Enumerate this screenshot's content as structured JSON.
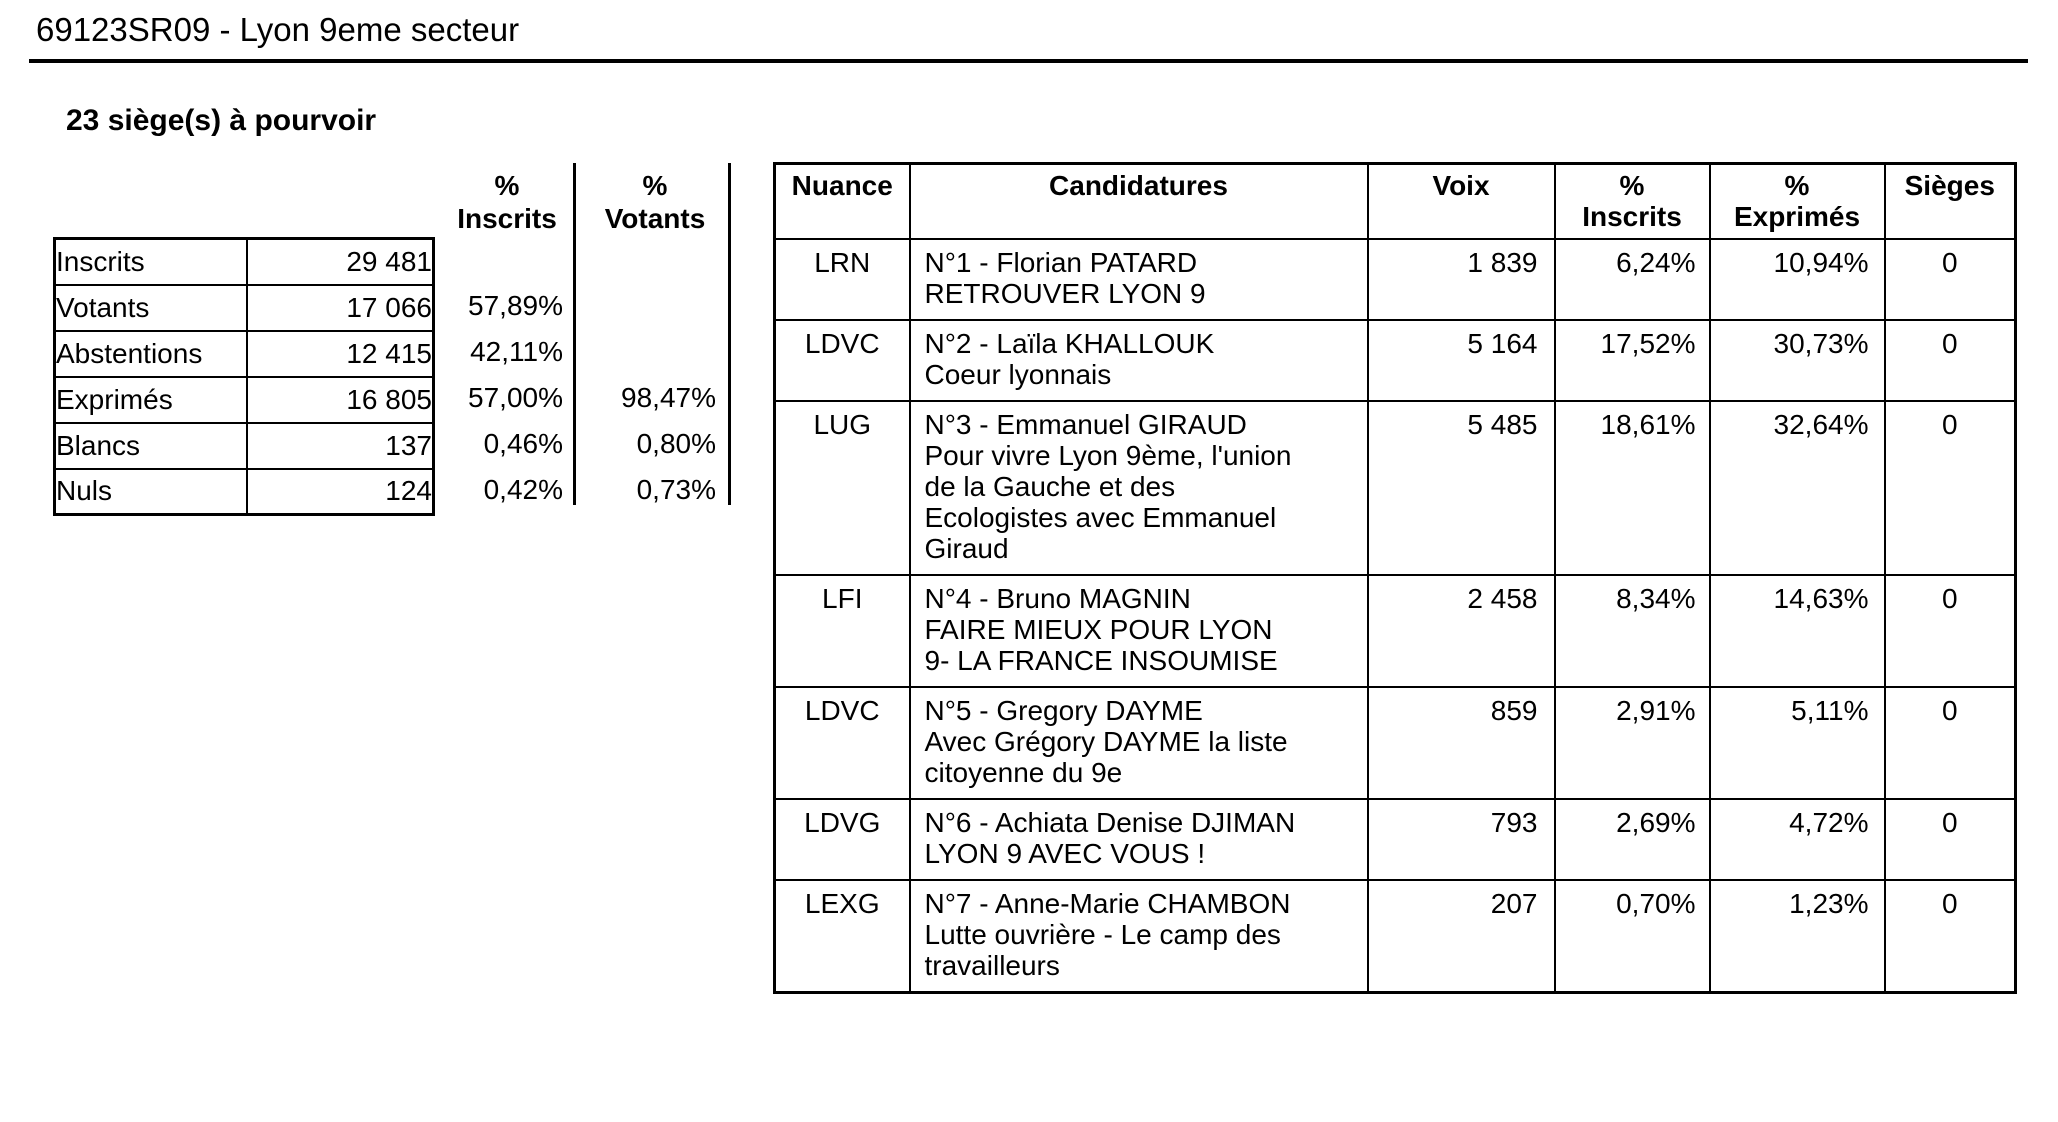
{
  "colors": {
    "text": "#000000",
    "background": "#ffffff",
    "border": "#000000"
  },
  "page": {
    "title": "69123SR09 - Lyon 9eme secteur",
    "seats_heading": "23 siège(s) à pourvoir"
  },
  "summary": {
    "pct_inscrits_header": "%\nInscrits",
    "pct_votants_header": "%\nVotants",
    "rows": [
      {
        "label": "Inscrits",
        "value": "29 481",
        "pct_inscrits": "",
        "pct_votants": ""
      },
      {
        "label": "Votants",
        "value": "17 066",
        "pct_inscrits": "57,89%",
        "pct_votants": ""
      },
      {
        "label": "Abstentions",
        "value": "12 415",
        "pct_inscrits": "42,11%",
        "pct_votants": ""
      },
      {
        "label": "Exprimés",
        "value": "16 805",
        "pct_inscrits": "57,00%",
        "pct_votants": "98,47%"
      },
      {
        "label": "Blancs",
        "value": "137",
        "pct_inscrits": "0,46%",
        "pct_votants": "0,80%"
      },
      {
        "label": "Nuls",
        "value": "124",
        "pct_inscrits": "0,42%",
        "pct_votants": "0,73%"
      }
    ]
  },
  "results": {
    "headers": [
      "Nuance",
      "Candidatures",
      "Voix",
      "%\nInscrits",
      "%\nExprimés",
      "Sièges"
    ],
    "rows": [
      {
        "nuance": "LRN",
        "candidature_lines": [
          "N°1 - Florian PATARD",
          "RETROUVER LYON 9"
        ],
        "voix": "1 839",
        "pct_inscrits": "6,24%",
        "pct_exprimes": "10,94%",
        "sieges": "0"
      },
      {
        "nuance": "LDVC",
        "candidature_lines": [
          "N°2 - Laïla KHALLOUK",
          "Coeur lyonnais"
        ],
        "voix": "5 164",
        "pct_inscrits": "17,52%",
        "pct_exprimes": "30,73%",
        "sieges": "0"
      },
      {
        "nuance": "LUG",
        "candidature_lines": [
          "N°3 - Emmanuel GIRAUD",
          "Pour vivre Lyon 9ème, l'union",
          "de la Gauche et des",
          "Ecologistes avec Emmanuel",
          "Giraud"
        ],
        "voix": "5 485",
        "pct_inscrits": "18,61%",
        "pct_exprimes": "32,64%",
        "sieges": "0"
      },
      {
        "nuance": "LFI",
        "candidature_lines": [
          "N°4 - Bruno MAGNIN",
          "FAIRE MIEUX POUR LYON",
          "9- LA FRANCE INSOUMISE"
        ],
        "voix": "2 458",
        "pct_inscrits": "8,34%",
        "pct_exprimes": "14,63%",
        "sieges": "0"
      },
      {
        "nuance": "LDVC",
        "candidature_lines": [
          "N°5 - Gregory DAYME",
          "Avec Grégory DAYME la liste",
          "citoyenne du 9e"
        ],
        "voix": "859",
        "pct_inscrits": "2,91%",
        "pct_exprimes": "5,11%",
        "sieges": "0"
      },
      {
        "nuance": "LDVG",
        "candidature_lines": [
          "N°6 - Achiata Denise DJIMAN",
          "LYON 9 AVEC VOUS !"
        ],
        "voix": "793",
        "pct_inscrits": "2,69%",
        "pct_exprimes": "4,72%",
        "sieges": "0"
      },
      {
        "nuance": "LEXG",
        "candidature_lines": [
          "N°7 - Anne-Marie CHAMBON",
          "Lutte ouvrière - Le camp des",
          "travailleurs"
        ],
        "voix": "207",
        "pct_inscrits": "0,70%",
        "pct_exprimes": "1,23%",
        "sieges": "0"
      }
    ]
  }
}
